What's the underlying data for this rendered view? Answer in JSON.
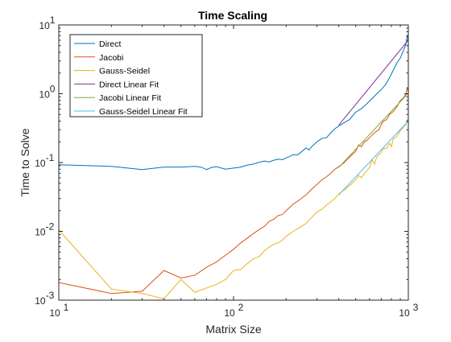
{
  "colors": {
    "axes": "#262626",
    "legend_border": "#262626",
    "background": "#ffffff"
  },
  "chart_data": {
    "type": "line",
    "title": "Time Scaling",
    "xlabel": "Matrix Size",
    "ylabel": "Time to Solve",
    "xscale": "log",
    "yscale": "log",
    "xlim": [
      10,
      1000
    ],
    "ylim": [
      0.001,
      10
    ],
    "x_ticks": [
      {
        "value": 10,
        "base": "10",
        "exp": "1"
      },
      {
        "value": 100,
        "base": "10",
        "exp": "2"
      },
      {
        "value": 1000,
        "base": "10",
        "exp": "3"
      }
    ],
    "y_ticks": [
      {
        "value": 0.001,
        "base": "10",
        "exp": "-3"
      },
      {
        "value": 0.01,
        "base": "10",
        "exp": "-2"
      },
      {
        "value": 0.1,
        "base": "10",
        "exp": "-1"
      },
      {
        "value": 1,
        "base": "10",
        "exp": "0"
      },
      {
        "value": 10,
        "base": "10",
        "exp": "1"
      }
    ],
    "grid": false,
    "legend_position": "top-left",
    "series": [
      {
        "name": "Direct",
        "color": "#0072BD",
        "points": [
          [
            10,
            0.093
          ],
          [
            20,
            0.088
          ],
          [
            30,
            0.079
          ],
          [
            40,
            0.086
          ],
          [
            50,
            0.086
          ],
          [
            60,
            0.088
          ],
          [
            65,
            0.086
          ],
          [
            70,
            0.079
          ],
          [
            75,
            0.085
          ],
          [
            80,
            0.087
          ],
          [
            90,
            0.08
          ],
          [
            100,
            0.083
          ],
          [
            110,
            0.086
          ],
          [
            120,
            0.092
          ],
          [
            130,
            0.095
          ],
          [
            140,
            0.101
          ],
          [
            150,
            0.105
          ],
          [
            160,
            0.102
          ],
          [
            170,
            0.108
          ],
          [
            180,
            0.112
          ],
          [
            190,
            0.11
          ],
          [
            200,
            0.117
          ],
          [
            210,
            0.123
          ],
          [
            220,
            0.131
          ],
          [
            230,
            0.128
          ],
          [
            240,
            0.137
          ],
          [
            250,
            0.15
          ],
          [
            260,
            0.163
          ],
          [
            270,
            0.152
          ],
          [
            280,
            0.17
          ],
          [
            290,
            0.185
          ],
          [
            300,
            0.2
          ],
          [
            320,
            0.224
          ],
          [
            340,
            0.23
          ],
          [
            360,
            0.27
          ],
          [
            380,
            0.31
          ],
          [
            400,
            0.34
          ],
          [
            430,
            0.38
          ],
          [
            460,
            0.42
          ],
          [
            500,
            0.54
          ],
          [
            540,
            0.61
          ],
          [
            580,
            0.72
          ],
          [
            620,
            0.85
          ],
          [
            660,
            1.0
          ],
          [
            700,
            1.15
          ],
          [
            740,
            1.35
          ],
          [
            780,
            1.7
          ],
          [
            820,
            2.2
          ],
          [
            860,
            2.8
          ],
          [
            900,
            3.3
          ],
          [
            940,
            4.3
          ],
          [
            970,
            5.3
          ],
          [
            985,
            7.0
          ],
          [
            1000,
            6.2
          ]
        ]
      },
      {
        "name": "Jacobi",
        "color": "#D95319",
        "points": [
          [
            10,
            0.0018
          ],
          [
            20,
            0.00125
          ],
          [
            30,
            0.00135
          ],
          [
            40,
            0.0027
          ],
          [
            50,
            0.0021
          ],
          [
            60,
            0.0023
          ],
          [
            70,
            0.003
          ],
          [
            80,
            0.0036
          ],
          [
            90,
            0.0045
          ],
          [
            100,
            0.0055
          ],
          [
            110,
            0.0068
          ],
          [
            120,
            0.008
          ],
          [
            130,
            0.0093
          ],
          [
            140,
            0.0106
          ],
          [
            150,
            0.0118
          ],
          [
            160,
            0.014
          ],
          [
            170,
            0.015
          ],
          [
            180,
            0.017
          ],
          [
            190,
            0.0175
          ],
          [
            200,
            0.02
          ],
          [
            220,
            0.025
          ],
          [
            240,
            0.029
          ],
          [
            260,
            0.034
          ],
          [
            280,
            0.041
          ],
          [
            300,
            0.048
          ],
          [
            320,
            0.056
          ],
          [
            340,
            0.062
          ],
          [
            360,
            0.07
          ],
          [
            380,
            0.08
          ],
          [
            400,
            0.087
          ],
          [
            430,
            0.1
          ],
          [
            460,
            0.12
          ],
          [
            500,
            0.145
          ],
          [
            520,
            0.18
          ],
          [
            540,
            0.17
          ],
          [
            560,
            0.2
          ],
          [
            580,
            0.21
          ],
          [
            600,
            0.23
          ],
          [
            620,
            0.25
          ],
          [
            650,
            0.28
          ],
          [
            680,
            0.3
          ],
          [
            700,
            0.36
          ],
          [
            720,
            0.4
          ],
          [
            750,
            0.42
          ],
          [
            780,
            0.5
          ],
          [
            820,
            0.55
          ],
          [
            860,
            0.65
          ],
          [
            900,
            0.8
          ],
          [
            940,
            0.88
          ],
          [
            970,
            1.0
          ],
          [
            985,
            1.25
          ],
          [
            1000,
            1.05
          ]
        ]
      },
      {
        "name": "Gauss-Seidel",
        "color": "#EDB120",
        "points": [
          [
            10,
            0.0105
          ],
          [
            20,
            0.00145
          ],
          [
            30,
            0.00125
          ],
          [
            40,
            0.00105
          ],
          [
            50,
            0.002
          ],
          [
            60,
            0.0013
          ],
          [
            70,
            0.0015
          ],
          [
            80,
            0.0017
          ],
          [
            90,
            0.002
          ],
          [
            100,
            0.0027
          ],
          [
            110,
            0.0028
          ],
          [
            120,
            0.0034
          ],
          [
            130,
            0.004
          ],
          [
            140,
            0.0043
          ],
          [
            150,
            0.0052
          ],
          [
            160,
            0.0059
          ],
          [
            170,
            0.0065
          ],
          [
            180,
            0.0068
          ],
          [
            190,
            0.0074
          ],
          [
            200,
            0.0085
          ],
          [
            220,
            0.01
          ],
          [
            240,
            0.0115
          ],
          [
            260,
            0.013
          ],
          [
            280,
            0.016
          ],
          [
            300,
            0.019
          ],
          [
            320,
            0.021
          ],
          [
            340,
            0.024
          ],
          [
            360,
            0.027
          ],
          [
            380,
            0.03
          ],
          [
            400,
            0.035
          ],
          [
            430,
            0.04
          ],
          [
            460,
            0.046
          ],
          [
            500,
            0.056
          ],
          [
            520,
            0.065
          ],
          [
            540,
            0.06
          ],
          [
            560,
            0.07
          ],
          [
            580,
            0.076
          ],
          [
            600,
            0.085
          ],
          [
            620,
            0.11
          ],
          [
            640,
            0.095
          ],
          [
            660,
            0.12
          ],
          [
            700,
            0.14
          ],
          [
            720,
            0.16
          ],
          [
            750,
            0.16
          ],
          [
            780,
            0.19
          ],
          [
            800,
            0.17
          ],
          [
            820,
            0.22
          ],
          [
            860,
            0.24
          ],
          [
            900,
            0.29
          ],
          [
            940,
            0.33
          ],
          [
            970,
            0.36
          ],
          [
            985,
            0.42
          ],
          [
            1000,
            0.39
          ]
        ]
      },
      {
        "name": "Direct Linear Fit",
        "color": "#7E2F8E",
        "points": [
          [
            400,
            0.35
          ],
          [
            1000,
            6.0
          ]
        ]
      },
      {
        "name": "Jacobi Linear Fit",
        "color": "#77AC30",
        "points": [
          [
            400,
            0.085
          ],
          [
            1000,
            1.02
          ]
        ]
      },
      {
        "name": "Gauss-Seidel Linear Fit",
        "color": "#4DBEEE",
        "points": [
          [
            400,
            0.034
          ],
          [
            1000,
            0.4
          ]
        ]
      }
    ]
  }
}
